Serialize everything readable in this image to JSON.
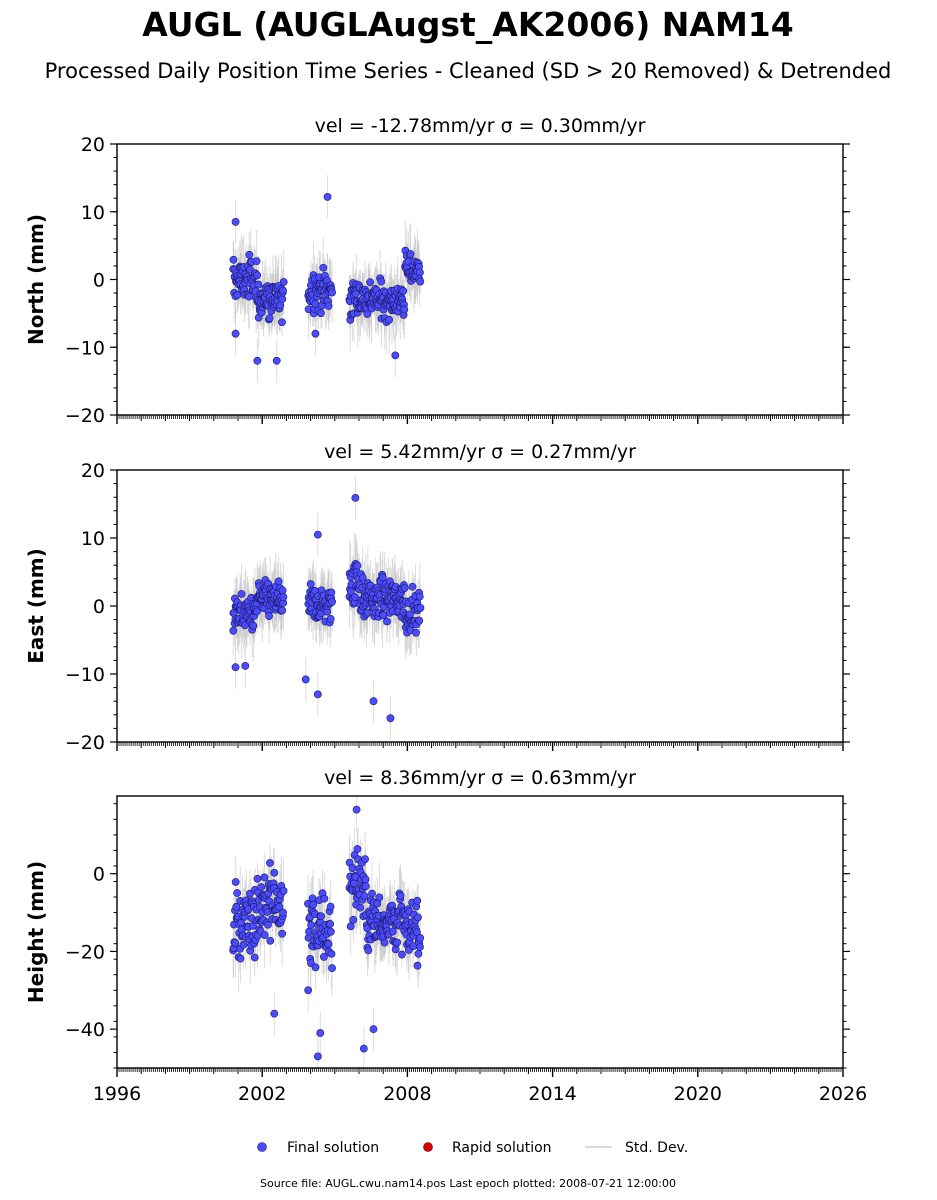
{
  "title": "AUGL (AUGLAugst_AK2006) NAM14",
  "subtitle": "Processed Daily Position Time Series - Cleaned (SD > 20 Removed) & Detrended",
  "legend": {
    "final": "Final solution",
    "rapid": "Rapid solution",
    "stddev": "Std. Dev."
  },
  "source_note": "Source file: AUGL.cwu.nam14.pos  Last epoch plotted: 2008-07-21 12:00:00",
  "colors": {
    "final": "#4b4bff",
    "final_edge": "#1a1a60",
    "rapid": "#dd0000",
    "stddev": "#bfbfbf"
  },
  "chart_data": [
    {
      "type": "scatter",
      "name": "north",
      "title": "vel = -12.78mm/yr   σ = 0.30mm/yr",
      "ylabel": "North (mm)",
      "xlim": [
        1996,
        2026
      ],
      "ylim": [
        -20,
        20
      ],
      "yticks": [
        20,
        10,
        0,
        -10,
        -20
      ],
      "ytick_labels": [
        "20",
        "10",
        "0",
        "−10",
        "−20"
      ],
      "xticks": [
        1996,
        2002,
        2008,
        2014,
        2020,
        2026
      ],
      "xtick_labels": [],
      "clusters": [
        {
          "x": [
            2000.8,
            2001.8
          ],
          "center": 0,
          "spread": 2.8
        },
        {
          "x": [
            2001.8,
            2002.9
          ],
          "center": -3,
          "spread": 3
        },
        {
          "x": [
            2003.9,
            2004.9
          ],
          "center": -1.5,
          "spread": 3
        },
        {
          "x": [
            2005.6,
            2007.9
          ],
          "center": -3,
          "spread": 2.5
        },
        {
          "x": [
            2007.9,
            2008.55
          ],
          "center": 1.5,
          "spread": 2.5
        }
      ],
      "outliers": [
        [
          2004.7,
          12.2
        ],
        [
          2000.9,
          8.5
        ],
        [
          2001.8,
          -12
        ],
        [
          2002.6,
          -12
        ],
        [
          2007.5,
          -11.2
        ],
        [
          2004.2,
          -8
        ],
        [
          2000.9,
          -8
        ]
      ]
    },
    {
      "type": "scatter",
      "name": "east",
      "title": "vel = 5.42mm/yr   σ = 0.27mm/yr",
      "ylabel": "East (mm)",
      "xlim": [
        1996,
        2026
      ],
      "ylim": [
        -20,
        20
      ],
      "yticks": [
        20,
        10,
        0,
        -10,
        -20
      ],
      "ytick_labels": [
        "20",
        "10",
        "0",
        "−10",
        "−20"
      ],
      "xticks": [
        1996,
        2002,
        2008,
        2014,
        2020,
        2026
      ],
      "xtick_labels": [],
      "clusters": [
        {
          "x": [
            2000.8,
            2001.8
          ],
          "center": -1,
          "spread": 2.2
        },
        {
          "x": [
            2001.8,
            2002.9
          ],
          "center": 1,
          "spread": 2.5
        },
        {
          "x": [
            2003.9,
            2004.9
          ],
          "center": 0,
          "spread": 2.8
        },
        {
          "x": [
            2005.6,
            2006.1
          ],
          "center": 4,
          "spread": 4
        },
        {
          "x": [
            2006.1,
            2007.9
          ],
          "center": 1,
          "spread": 2.8
        },
        {
          "x": [
            2007.9,
            2008.55
          ],
          "center": -1,
          "spread": 2.5
        }
      ],
      "outliers": [
        [
          2005.85,
          15.9
        ],
        [
          2004.3,
          10.5
        ],
        [
          2004.3,
          -13
        ],
        [
          2007.3,
          -16.5
        ],
        [
          2006.6,
          -14
        ],
        [
          2003.8,
          -10.8
        ],
        [
          2000.9,
          -9
        ],
        [
          2001.3,
          -8.8
        ]
      ]
    },
    {
      "type": "scatter",
      "name": "height",
      "title": "vel = 8.36mm/yr   σ = 0.63mm/yr",
      "ylabel": "Height (mm)",
      "xlim": [
        1996,
        2026
      ],
      "ylim": [
        -50,
        20
      ],
      "yticks": [
        0,
        -20,
        -40
      ],
      "ytick_labels": [
        "0",
        "−20",
        "−40"
      ],
      "xticks": [
        1996,
        2002,
        2008,
        2014,
        2020,
        2026
      ],
      "xtick_labels": [
        "1996",
        "2002",
        "2008",
        "2014",
        "2020",
        "2026"
      ],
      "clusters": [
        {
          "x": [
            2000.8,
            2001.8
          ],
          "center": -12,
          "spread": 9
        },
        {
          "x": [
            2001.8,
            2002.9
          ],
          "center": -8,
          "spread": 9
        },
        {
          "x": [
            2003.9,
            2004.9
          ],
          "center": -15,
          "spread": 9
        },
        {
          "x": [
            2005.6,
            2006.3
          ],
          "center": -2,
          "spread": 9
        },
        {
          "x": [
            2006.3,
            2007.9
          ],
          "center": -12,
          "spread": 7
        },
        {
          "x": [
            2007.9,
            2008.55
          ],
          "center": -15,
          "spread": 7
        }
      ],
      "outliers": [
        [
          2005.9,
          16.5
        ],
        [
          2004.3,
          -47
        ],
        [
          2006.2,
          -45
        ],
        [
          2006.6,
          -40
        ],
        [
          2004.4,
          -41
        ],
        [
          2002.5,
          -36
        ],
        [
          2003.9,
          -30
        ]
      ]
    }
  ]
}
